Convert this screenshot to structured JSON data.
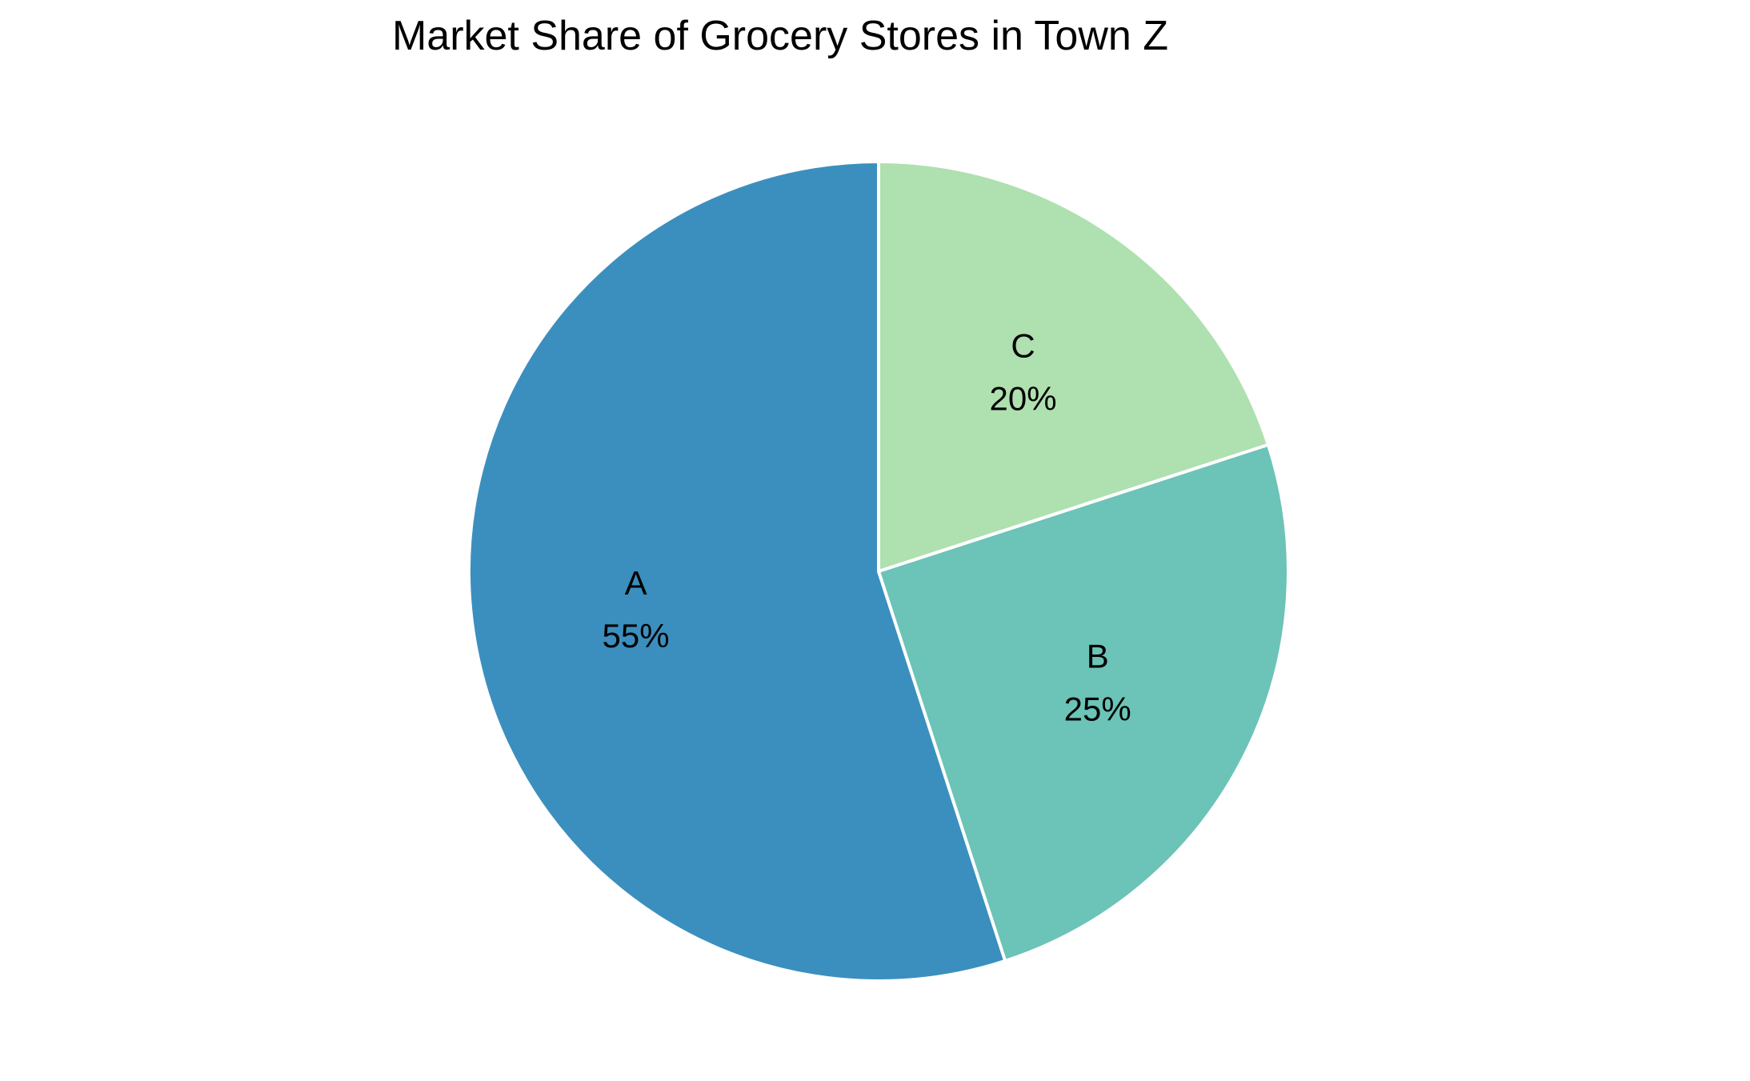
{
  "chart_data": {
    "type": "pie",
    "title": "Market Share of Grocery Stores in Town Z",
    "categories": [
      "A",
      "B",
      "C"
    ],
    "values": [
      55,
      25,
      20
    ],
    "value_labels": [
      "55%",
      "25%",
      "20%"
    ],
    "colors": [
      "#3b8fbe",
      "#6cc3b7",
      "#afe0b0"
    ],
    "start_angle": "top",
    "direction": "clockwise"
  }
}
